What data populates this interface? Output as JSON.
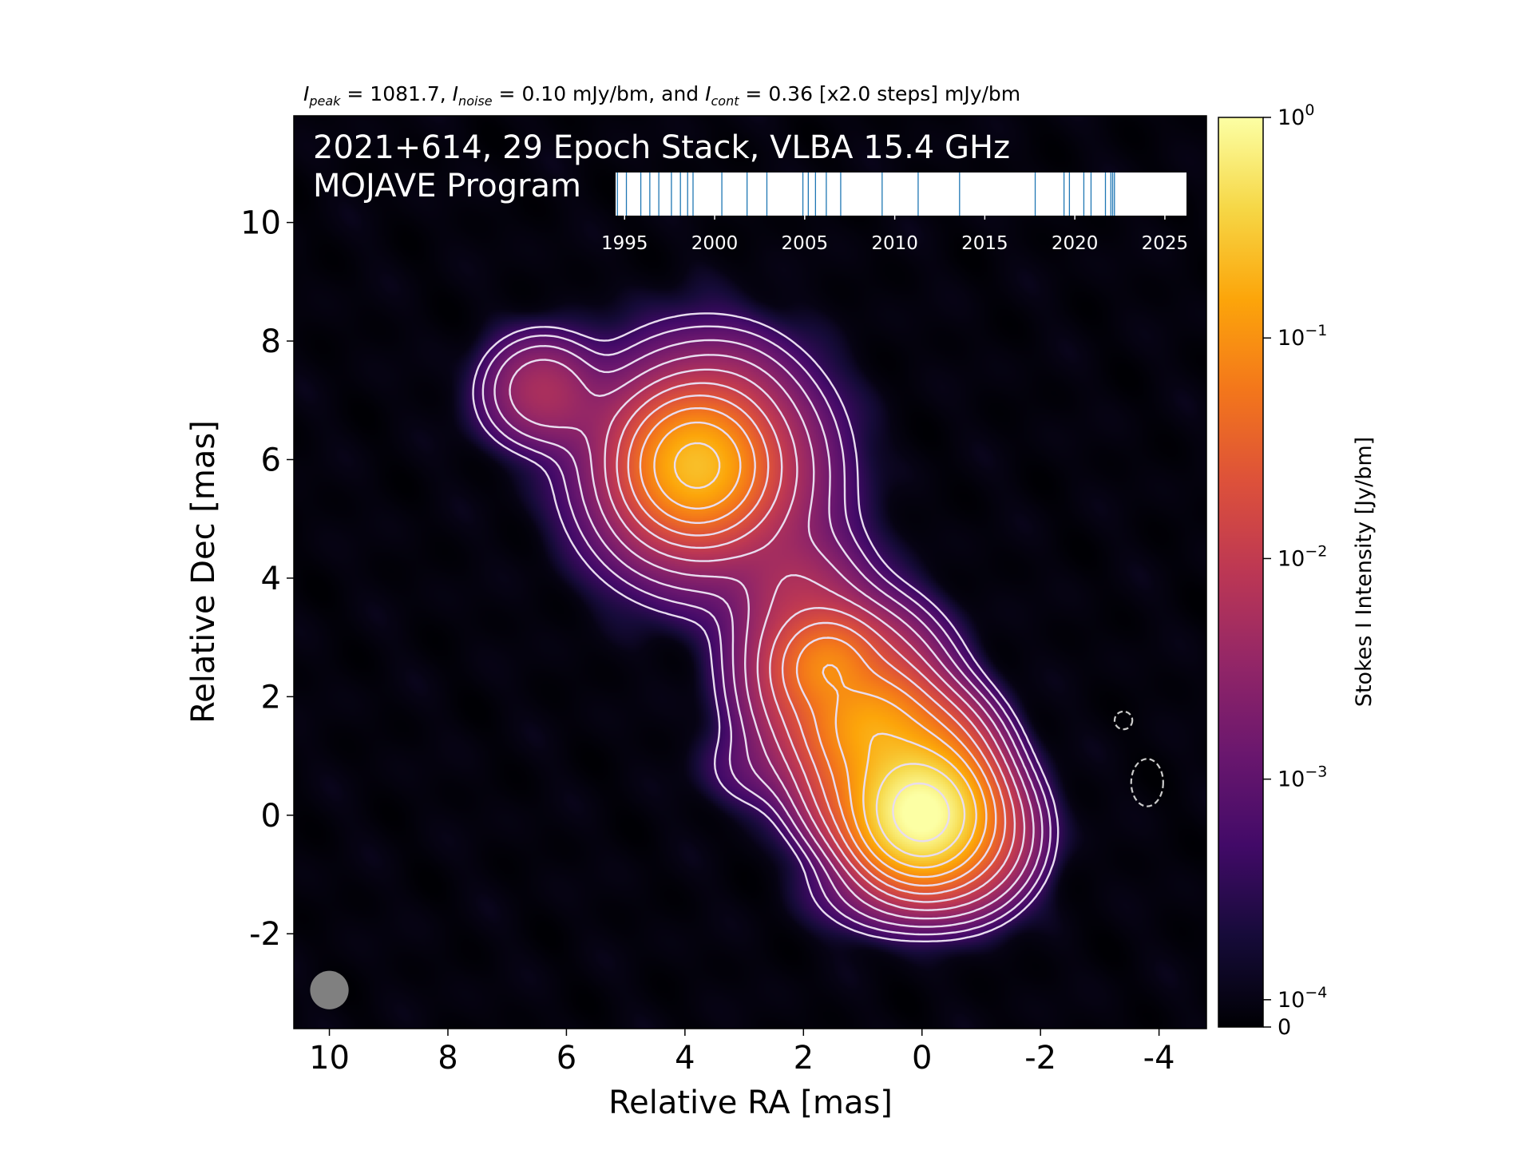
{
  "chart_data": {
    "type": "heatmap",
    "header": {
      "peak_symbol": "I",
      "peak_sub": "peak",
      "peak_text": " = 1081.7, ",
      "noise_symbol": "I",
      "noise_sub": "noise",
      "noise_text": " = 0.10 mJy/bm, and ",
      "cont_symbol": "I",
      "cont_sub": "cont",
      "cont_text": " = 0.36 [x2.0 steps] mJy/bm"
    },
    "title_line1": "2021+614, 29 Epoch Stack, VLBA 15.4 GHz",
    "title_line2": "MOJAVE Program",
    "xlabel": "Relative RA [mas]",
    "ylabel": "Relative Dec [mas]",
    "xlim": [
      10.6,
      -4.8
    ],
    "ylim": [
      -3.6,
      11.8
    ],
    "x_ticks": [
      10,
      8,
      6,
      4,
      2,
      0,
      -2,
      -4
    ],
    "y_ticks": [
      10,
      8,
      6,
      4,
      2,
      0,
      -2
    ],
    "colorbar": {
      "label": "Stokes I Intensity [Jy/bm]",
      "scale": "log",
      "colormap": "inferno",
      "ticks": [
        {
          "value": 1,
          "base": "10",
          "exp": "0"
        },
        {
          "value": 0.1,
          "base": "10",
          "exp": "−1"
        },
        {
          "value": 0.01,
          "base": "10",
          "exp": "−2"
        },
        {
          "value": 0.001,
          "base": "10",
          "exp": "−3"
        },
        {
          "value": 0.0001,
          "base": "10",
          "exp": "−4"
        },
        {
          "value": 0,
          "base": "0",
          "exp": ""
        }
      ]
    },
    "epoch_timeline": {
      "xlim": [
        1994.5,
        2026.2
      ],
      "ticks": [
        1995,
        2000,
        2005,
        2010,
        2015,
        2020,
        2025
      ],
      "epochs": [
        1994.6,
        1995.1,
        1995.9,
        1996.4,
        1996.9,
        1997.6,
        1998.1,
        1998.5,
        1998.8,
        2000.4,
        2001.8,
        2002.9,
        2004.9,
        2005.2,
        2005.6,
        2006.2,
        2007.0,
        2009.3,
        2011.3,
        2013.6,
        2017.8,
        2019.4,
        2019.7,
        2020.5,
        2020.9,
        2021.7,
        2022.0,
        2022.1,
        2022.2
      ]
    },
    "components": [
      {
        "ra": 0.0,
        "dec": 0.0,
        "peak_jy": 1.08,
        "sx": 0.45,
        "sy": 0.45
      },
      {
        "ra": 0.3,
        "dec": 0.6,
        "peak_jy": 0.22,
        "sx": 0.6,
        "sy": 0.6
      },
      {
        "ra": 0.9,
        "dec": 1.5,
        "peak_jy": 0.1,
        "sx": 0.5,
        "sy": 0.45
      },
      {
        "ra": 1.6,
        "dec": 2.5,
        "peak_jy": 0.065,
        "sx": 0.4,
        "sy": 0.4
      },
      {
        "ra": 1.2,
        "dec": 2.0,
        "peak_jy": 0.03,
        "sx": 0.7,
        "sy": 0.7
      },
      {
        "ra": 2.0,
        "dec": 3.0,
        "peak_jy": 0.008,
        "sx": 0.6,
        "sy": 0.9
      },
      {
        "ra": 2.3,
        "dec": 4.0,
        "peak_jy": 0.001,
        "sx": 0.4,
        "sy": 0.4
      },
      {
        "ra": 3.8,
        "dec": 5.9,
        "peak_jy": 0.22,
        "sx": 0.5,
        "sy": 0.5
      },
      {
        "ra": 3.7,
        "dec": 5.9,
        "peak_jy": 0.02,
        "sx": 0.9,
        "sy": 0.9
      },
      {
        "ra": 3.0,
        "dec": 5.5,
        "peak_jy": 0.002,
        "sx": 0.7,
        "sy": 0.8
      },
      {
        "ra": 3.2,
        "dec": 7.0,
        "peak_jy": 0.0015,
        "sx": 0.5,
        "sy": 0.5
      },
      {
        "ra": 6.4,
        "dec": 7.2,
        "peak_jy": 0.005,
        "sx": 0.5,
        "sy": 0.45
      },
      {
        "ra": 5.7,
        "dec": 6.7,
        "peak_jy": 0.0012,
        "sx": 0.8,
        "sy": 0.4
      },
      {
        "ra": 4.5,
        "dec": 5.0,
        "peak_jy": 0.0008,
        "sx": 0.5,
        "sy": 0.5
      },
      {
        "ra": 2.8,
        "dec": 0.8,
        "peak_jy": 0.0008,
        "sx": 0.5,
        "sy": 0.4
      },
      {
        "ra": 1.5,
        "dec": 0.6,
        "peak_jy": 0.003,
        "sx": 0.5,
        "sy": 0.5
      },
      {
        "ra": -0.6,
        "dec": -0.3,
        "peak_jy": 0.04,
        "sx": 0.55,
        "sy": 0.55
      },
      {
        "ra": 0.3,
        "dec": -1.2,
        "peak_jy": 0.004,
        "sx": 0.7,
        "sy": 0.4
      }
    ],
    "negative_contour_regions": [
      {
        "ra": -3.4,
        "dec": 1.6,
        "rx": 0.15,
        "ry": 0.15
      },
      {
        "ra": -3.8,
        "dec": 0.55,
        "rx": 0.27,
        "ry": 0.4
      }
    ],
    "beam": {
      "ra": 10.0,
      "dec": -2.95,
      "size_mas": 0.65,
      "color": "#808080"
    },
    "contour_color": "#e8dcef"
  }
}
